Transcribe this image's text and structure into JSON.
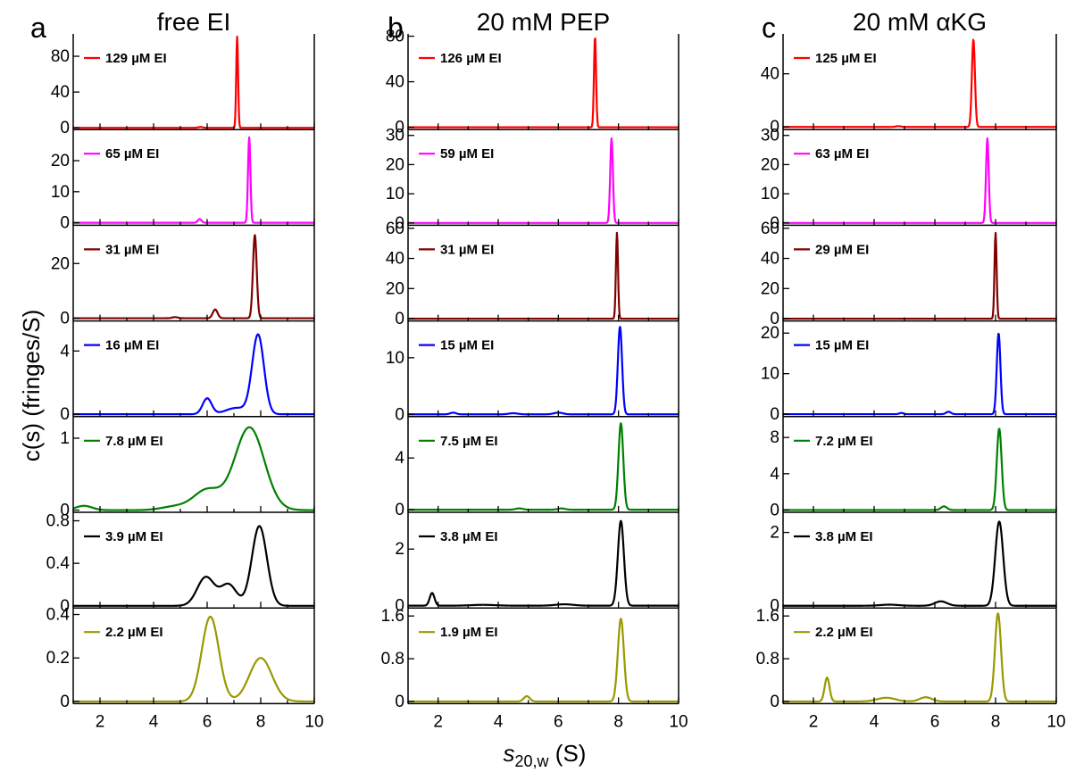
{
  "figure": {
    "ylabel": "c(s) (fringes/S)",
    "xlabel_main": "s",
    "xlabel_sub": "20,w",
    "xlabel_unit": " (S)"
  },
  "chart_data": [
    {
      "type": "line",
      "panel": "a",
      "title": "free EI",
      "xlim": [
        1,
        10
      ],
      "x_ticks": [
        2,
        4,
        6,
        8,
        10
      ],
      "subplots": [
        {
          "label": "129 µM EI",
          "color": "#ff0000",
          "ylim": [
            -2,
            105
          ],
          "yticks": [
            0,
            40,
            80
          ],
          "components": [
            {
              "mu": 7.12,
              "sigma": 0.035,
              "amp": 102
            },
            {
              "mu": 5.75,
              "sigma": 0.08,
              "amp": 1.0
            }
          ]
        },
        {
          "label": "65 µM EI",
          "color": "#ff00ff",
          "ylim": [
            -0.8,
            30
          ],
          "yticks": [
            0,
            10,
            20
          ],
          "components": [
            {
              "mu": 7.57,
              "sigma": 0.045,
              "amp": 27.5
            },
            {
              "mu": 5.72,
              "sigma": 0.07,
              "amp": 1.2
            }
          ]
        },
        {
          "label": "31 µM EI",
          "color": "#800000",
          "ylim": [
            -1,
            34
          ],
          "yticks": [
            0,
            20
          ],
          "components": [
            {
              "mu": 7.78,
              "sigma": 0.07,
              "amp": 30.5
            },
            {
              "mu": 6.3,
              "sigma": 0.09,
              "amp": 3.2
            },
            {
              "mu": 4.8,
              "sigma": 0.1,
              "amp": 0.4
            }
          ]
        },
        {
          "label": "16 µM EI",
          "color": "#0000ff",
          "ylim": [
            -0.15,
            5.9
          ],
          "yticks": [
            0,
            4
          ],
          "components": [
            {
              "mu": 7.9,
              "sigma": 0.22,
              "amp": 5.0
            },
            {
              "mu": 6.0,
              "sigma": 0.17,
              "amp": 1.0
            },
            {
              "mu": 7.1,
              "sigma": 0.4,
              "amp": 0.4
            }
          ]
        },
        {
          "label": "7.8 µM EI",
          "color": "#008000",
          "ylim": [
            -0.03,
            1.3
          ],
          "yticks": [
            0,
            1
          ],
          "components": [
            {
              "mu": 7.58,
              "sigma": 0.55,
              "amp": 1.15
            },
            {
              "mu": 6.0,
              "sigma": 0.5,
              "amp": 0.28
            },
            {
              "mu": 1.4,
              "sigma": 0.3,
              "amp": 0.06
            },
            {
              "mu": 4.8,
              "sigma": 0.5,
              "amp": 0.05
            }
          ]
        },
        {
          "label": "3.9 µM EI",
          "color": "#000000",
          "ylim": [
            -0.02,
            0.88
          ],
          "yticks": [
            0,
            0.4,
            0.8
          ],
          "components": [
            {
              "mu": 7.95,
              "sigma": 0.28,
              "amp": 0.75
            },
            {
              "mu": 5.95,
              "sigma": 0.32,
              "amp": 0.27
            },
            {
              "mu": 6.8,
              "sigma": 0.3,
              "amp": 0.2
            }
          ]
        },
        {
          "label": "2.2 µM EI",
          "color": "#999900",
          "ylim": [
            -0.01,
            0.43
          ],
          "yticks": [
            0,
            0.2,
            0.4
          ],
          "components": [
            {
              "mu": 6.12,
              "sigma": 0.32,
              "amp": 0.39
            },
            {
              "mu": 8.0,
              "sigma": 0.42,
              "amp": 0.2
            }
          ]
        }
      ]
    },
    {
      "type": "line",
      "panel": "b",
      "title": "20 mM PEP",
      "xlim": [
        1,
        10
      ],
      "x_ticks": [
        2,
        4,
        6,
        8,
        10
      ],
      "subplots": [
        {
          "label": "126 µM EI",
          "color": "#ff0000",
          "ylim": [
            -2,
            82
          ],
          "yticks": [
            0,
            40,
            80
          ],
          "components": [
            {
              "mu": 7.22,
              "sigma": 0.035,
              "amp": 80
            }
          ]
        },
        {
          "label": "59 µM EI",
          "color": "#ff00ff",
          "ylim": [
            -0.8,
            32
          ],
          "yticks": [
            0,
            10,
            20,
            30
          ],
          "components": [
            {
              "mu": 7.77,
              "sigma": 0.045,
              "amp": 29
            }
          ]
        },
        {
          "label": "31 µM EI",
          "color": "#800000",
          "ylim": [
            -1.5,
            62
          ],
          "yticks": [
            0,
            20,
            40,
            60
          ],
          "components": [
            {
              "mu": 7.95,
              "sigma": 0.035,
              "amp": 57
            }
          ]
        },
        {
          "label": "15 µM EI",
          "color": "#0000ff",
          "ylim": [
            -0.4,
            16.5
          ],
          "yticks": [
            0,
            10
          ],
          "components": [
            {
              "mu": 8.05,
              "sigma": 0.07,
              "amp": 15.5
            },
            {
              "mu": 2.5,
              "sigma": 0.1,
              "amp": 0.3
            },
            {
              "mu": 4.5,
              "sigma": 0.15,
              "amp": 0.2
            },
            {
              "mu": 6.0,
              "sigma": 0.15,
              "amp": 0.3
            }
          ]
        },
        {
          "label": "7.5 µM EI",
          "color": "#008000",
          "ylim": [
            -0.2,
            7.2
          ],
          "yticks": [
            0,
            4
          ],
          "components": [
            {
              "mu": 8.08,
              "sigma": 0.08,
              "amp": 6.7
            },
            {
              "mu": 4.7,
              "sigma": 0.12,
              "amp": 0.1
            },
            {
              "mu": 6.1,
              "sigma": 0.12,
              "amp": 0.1
            }
          ]
        },
        {
          "label": "3.8 µM EI",
          "color": "#000000",
          "ylim": [
            -0.08,
            3.3
          ],
          "yticks": [
            0,
            2
          ],
          "components": [
            {
              "mu": 8.08,
              "sigma": 0.1,
              "amp": 3.0
            },
            {
              "mu": 1.8,
              "sigma": 0.08,
              "amp": 0.45
            },
            {
              "mu": 6.2,
              "sigma": 0.3,
              "amp": 0.05
            },
            {
              "mu": 3.5,
              "sigma": 0.4,
              "amp": 0.03
            }
          ]
        },
        {
          "label": "1.9 µM EI",
          "color": "#999900",
          "ylim": [
            -0.04,
            1.75
          ],
          "yticks": [
            0,
            0.8,
            1.6
          ],
          "components": [
            {
              "mu": 8.08,
              "sigma": 0.1,
              "amp": 1.55
            },
            {
              "mu": 4.95,
              "sigma": 0.1,
              "amp": 0.1
            }
          ]
        }
      ]
    },
    {
      "type": "line",
      "panel": "c",
      "title": "20 mM αKG",
      "xlim": [
        1,
        10
      ],
      "x_ticks": [
        2,
        4,
        6,
        8,
        10
      ],
      "subplots": [
        {
          "label": "125 µM EI",
          "color": "#ff0000",
          "ylim": [
            -2,
            70
          ],
          "yticks": [
            0,
            40
          ],
          "components": [
            {
              "mu": 7.27,
              "sigma": 0.05,
              "amp": 66
            },
            {
              "mu": 4.8,
              "sigma": 0.08,
              "amp": 0.6
            }
          ]
        },
        {
          "label": "63 µM EI",
          "color": "#ff00ff",
          "ylim": [
            -0.8,
            32
          ],
          "yticks": [
            0,
            10,
            20,
            30
          ],
          "components": [
            {
              "mu": 7.73,
              "sigma": 0.045,
              "amp": 29
            }
          ]
        },
        {
          "label": "29 µM EI",
          "color": "#800000",
          "ylim": [
            -1.5,
            62
          ],
          "yticks": [
            0,
            20,
            40,
            60
          ],
          "components": [
            {
              "mu": 8.0,
              "sigma": 0.035,
              "amp": 57
            }
          ]
        },
        {
          "label": "15 µM EI",
          "color": "#0000ff",
          "ylim": [
            -0.6,
            23
          ],
          "yticks": [
            0,
            10,
            20
          ],
          "components": [
            {
              "mu": 8.1,
              "sigma": 0.06,
              "amp": 20
            },
            {
              "mu": 4.9,
              "sigma": 0.07,
              "amp": 0.3
            },
            {
              "mu": 6.45,
              "sigma": 0.08,
              "amp": 0.6
            }
          ]
        },
        {
          "label": "7.2 µM EI",
          "color": "#008000",
          "ylim": [
            -0.25,
            10.3
          ],
          "yticks": [
            0,
            4,
            8
          ],
          "components": [
            {
              "mu": 8.12,
              "sigma": 0.08,
              "amp": 9.0
            },
            {
              "mu": 6.3,
              "sigma": 0.1,
              "amp": 0.4
            }
          ]
        },
        {
          "label": "3.8 µM EI",
          "color": "#000000",
          "ylim": [
            -0.06,
            2.55
          ],
          "yticks": [
            0,
            2
          ],
          "components": [
            {
              "mu": 8.12,
              "sigma": 0.13,
              "amp": 2.3
            },
            {
              "mu": 6.2,
              "sigma": 0.2,
              "amp": 0.12
            },
            {
              "mu": 4.5,
              "sigma": 0.3,
              "amp": 0.03
            }
          ]
        },
        {
          "label": "2.2 µM EI",
          "color": "#999900",
          "ylim": [
            -0.04,
            1.75
          ],
          "yticks": [
            0,
            0.8,
            1.6
          ],
          "components": [
            {
              "mu": 8.08,
              "sigma": 0.1,
              "amp": 1.65
            },
            {
              "mu": 2.45,
              "sigma": 0.08,
              "amp": 0.45
            },
            {
              "mu": 4.4,
              "sigma": 0.3,
              "amp": 0.07
            },
            {
              "mu": 5.7,
              "sigma": 0.2,
              "amp": 0.08
            }
          ]
        }
      ]
    }
  ]
}
